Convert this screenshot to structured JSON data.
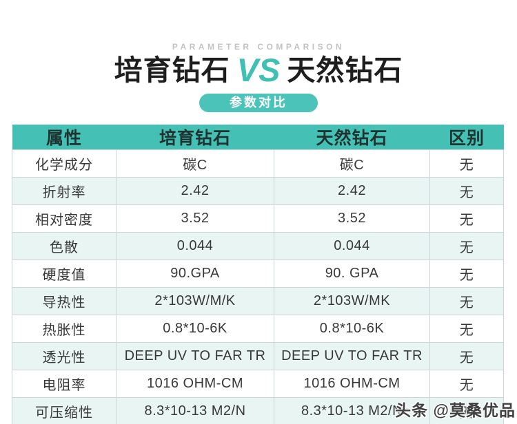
{
  "header": {
    "eyebrow": "PARAMETER COMPARISON",
    "title_left": "培育钻石",
    "title_vs": "VS",
    "title_right": "天然钻石",
    "badge": "参数对比"
  },
  "chart_data": {
    "type": "table",
    "title": "培育钻石 VS 天然钻石",
    "subtitle": "参数对比",
    "columns": [
      "属性",
      "培育钻石",
      "天然钻石",
      "区别"
    ],
    "rows": [
      [
        "化学成分",
        "碳C",
        "碳C",
        "无"
      ],
      [
        "折射率",
        "2.42",
        "2.42",
        "无"
      ],
      [
        "相对密度",
        "3.52",
        "3.52",
        "无"
      ],
      [
        "色散",
        "0.044",
        "0.044",
        "无"
      ],
      [
        "硬度值",
        "90.GPA",
        "90. GPA",
        "无"
      ],
      [
        "导热性",
        "2*103W/M/K",
        "2*103W/MK",
        "无"
      ],
      [
        "热胀性",
        "0.8*10-6K",
        "0.8*10-6K",
        "无"
      ],
      [
        "透光性",
        "DEEP UV TO FAR TR",
        "DEEP UV TO FAR TR",
        "无"
      ],
      [
        "电阻率",
        "1016 OHM-CM",
        "1016 OHM-CM",
        "无"
      ],
      [
        "可压缩性",
        "8.3*10-13 M2/N",
        "8.3*10-13 M2/N",
        "无"
      ]
    ]
  },
  "watermark": "头条 @莫桑优品",
  "colors": {
    "accent": "#45c0b5",
    "badge": "#4cc3b8",
    "vs": "#3fc0b5",
    "row_alt": "#e9f5f3",
    "border": "#ccd6d6",
    "header_text": "#203331",
    "eyebrow": "#c3c3c3"
  }
}
